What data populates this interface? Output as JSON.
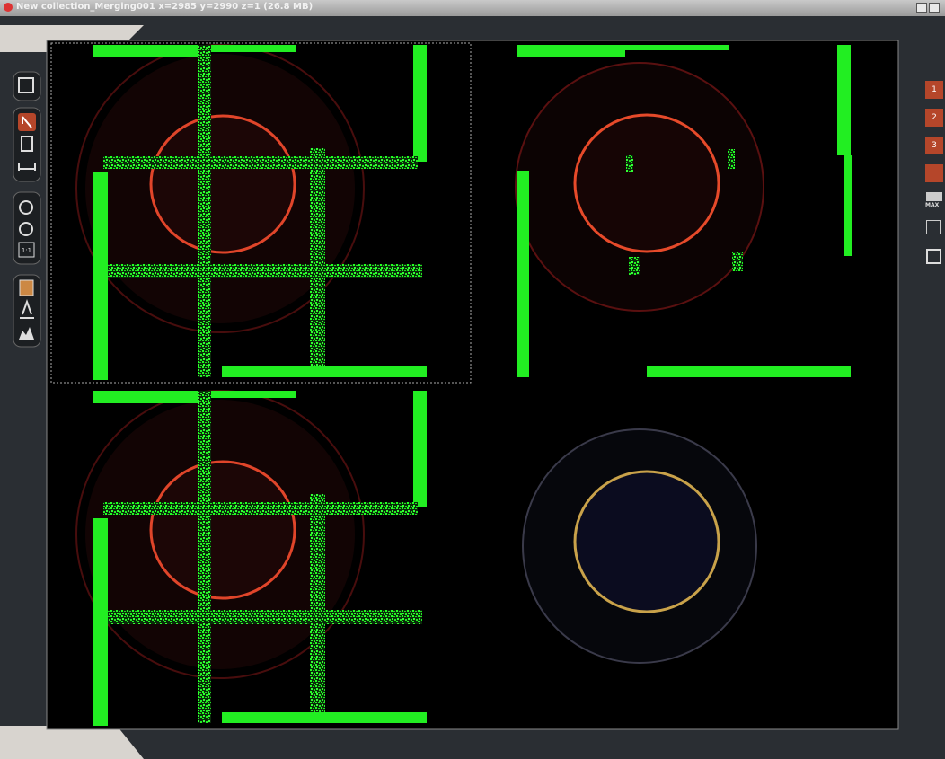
{
  "window": {
    "title": "New collection_Merging001 x=2985 y=2990 z=1 (26.8 MB)"
  },
  "toolbar": {
    "actual_size": "1:1"
  },
  "side_panel": {
    "buttons": [
      "1",
      "2",
      "3"
    ],
    "max_label": "MAX"
  }
}
